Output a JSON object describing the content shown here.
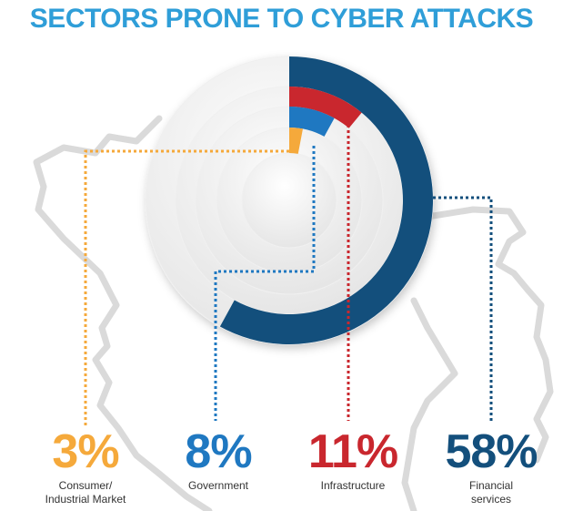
{
  "title": "SECTORS PRONE TO CYBER ATTACKS",
  "colors": {
    "title": "#2f9ed8",
    "consumer": "#f5a93b",
    "government": "#1f78c1",
    "infrastructure": "#c9272e",
    "financial": "#134f7c",
    "map_outline": "#d6d6d6"
  },
  "chart_data": {
    "type": "radial-bar",
    "title": "SECTORS PRONE TO CYBER ATTACKS",
    "unit": "%",
    "categories": [
      "Consumer/ Industrial Market",
      "Government",
      "Infrastructure",
      "Financial services"
    ],
    "values": [
      3,
      8,
      11,
      58
    ],
    "series": [
      {
        "label": "Consumer/\nIndustrial Market",
        "value": 3,
        "display": "3%",
        "color": "#f5a93b"
      },
      {
        "label": "Government",
        "value": 8,
        "display": "8%",
        "color": "#1f78c1"
      },
      {
        "label": "Infrastructure",
        "value": 11,
        "display": "11%",
        "color": "#c9272e"
      },
      {
        "label": "Financial\nservices",
        "value": 58,
        "display": "58%",
        "color": "#134f7c"
      }
    ]
  }
}
